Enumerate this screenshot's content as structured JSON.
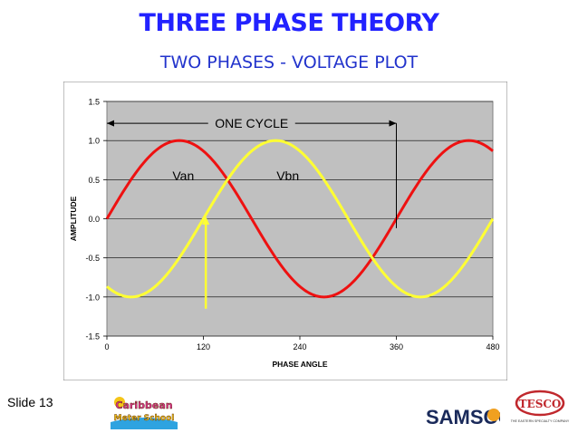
{
  "slide": {
    "title": "THREE PHASE THEORY",
    "subtitle": "TWO PHASES - VOLTAGE PLOT",
    "slide_number": "Slide 13",
    "title_color": "#2222ff",
    "subtitle_color": "#2233cc"
  },
  "logos": {
    "caribbean_line1": "Caribbean",
    "caribbean_line2": "Meter School",
    "samsco": "SAMSCO",
    "tesco": "TESCO",
    "tesco_tagline": "THE EASTERN SPECIALTY COMPANY"
  },
  "chart_data": {
    "type": "line",
    "xlabel": "PHASE ANGLE",
    "ylabel": "AMPLITUDE",
    "xlim": [
      0,
      480
    ],
    "ylim": [
      -1.5,
      1.5
    ],
    "x_ticks": [
      0,
      120,
      240,
      360,
      480
    ],
    "x_tick_labels": [
      "0",
      "120",
      "240",
      "360",
      "480"
    ],
    "y_ticks": [
      1.5,
      1.0,
      0.5,
      0.0,
      -0.5,
      -1.0,
      -1.5
    ],
    "y_tick_labels": [
      "1.5",
      "1.0",
      "0.5",
      "0.0",
      "-0.5",
      "-1.0",
      "-1.5"
    ],
    "grid": "horizontal",
    "plot_background": "#c0c0c0",
    "series": [
      {
        "name": "Van",
        "color": "#ee1111",
        "phase_shift_deg": 0,
        "amplitude": 1.0
      },
      {
        "name": "Vbn",
        "color": "#ffff33",
        "phase_shift_deg": 120,
        "amplitude": 1.0
      }
    ],
    "annotations": {
      "cycle_label": "ONE CYCLE",
      "cycle_start": 0,
      "cycle_end": 360,
      "cycle_arrow_y": 1.22,
      "cycle_marker_x": 360,
      "cycle_marker_bottom": -0.12,
      "vbn_marker_x": 123,
      "vbn_marker_top": 0.03,
      "vbn_marker_bottom": -1.15,
      "van_label_x": 95,
      "van_label_y": 0.55,
      "vbn_label_x": 225,
      "vbn_label_y": 0.55
    }
  }
}
